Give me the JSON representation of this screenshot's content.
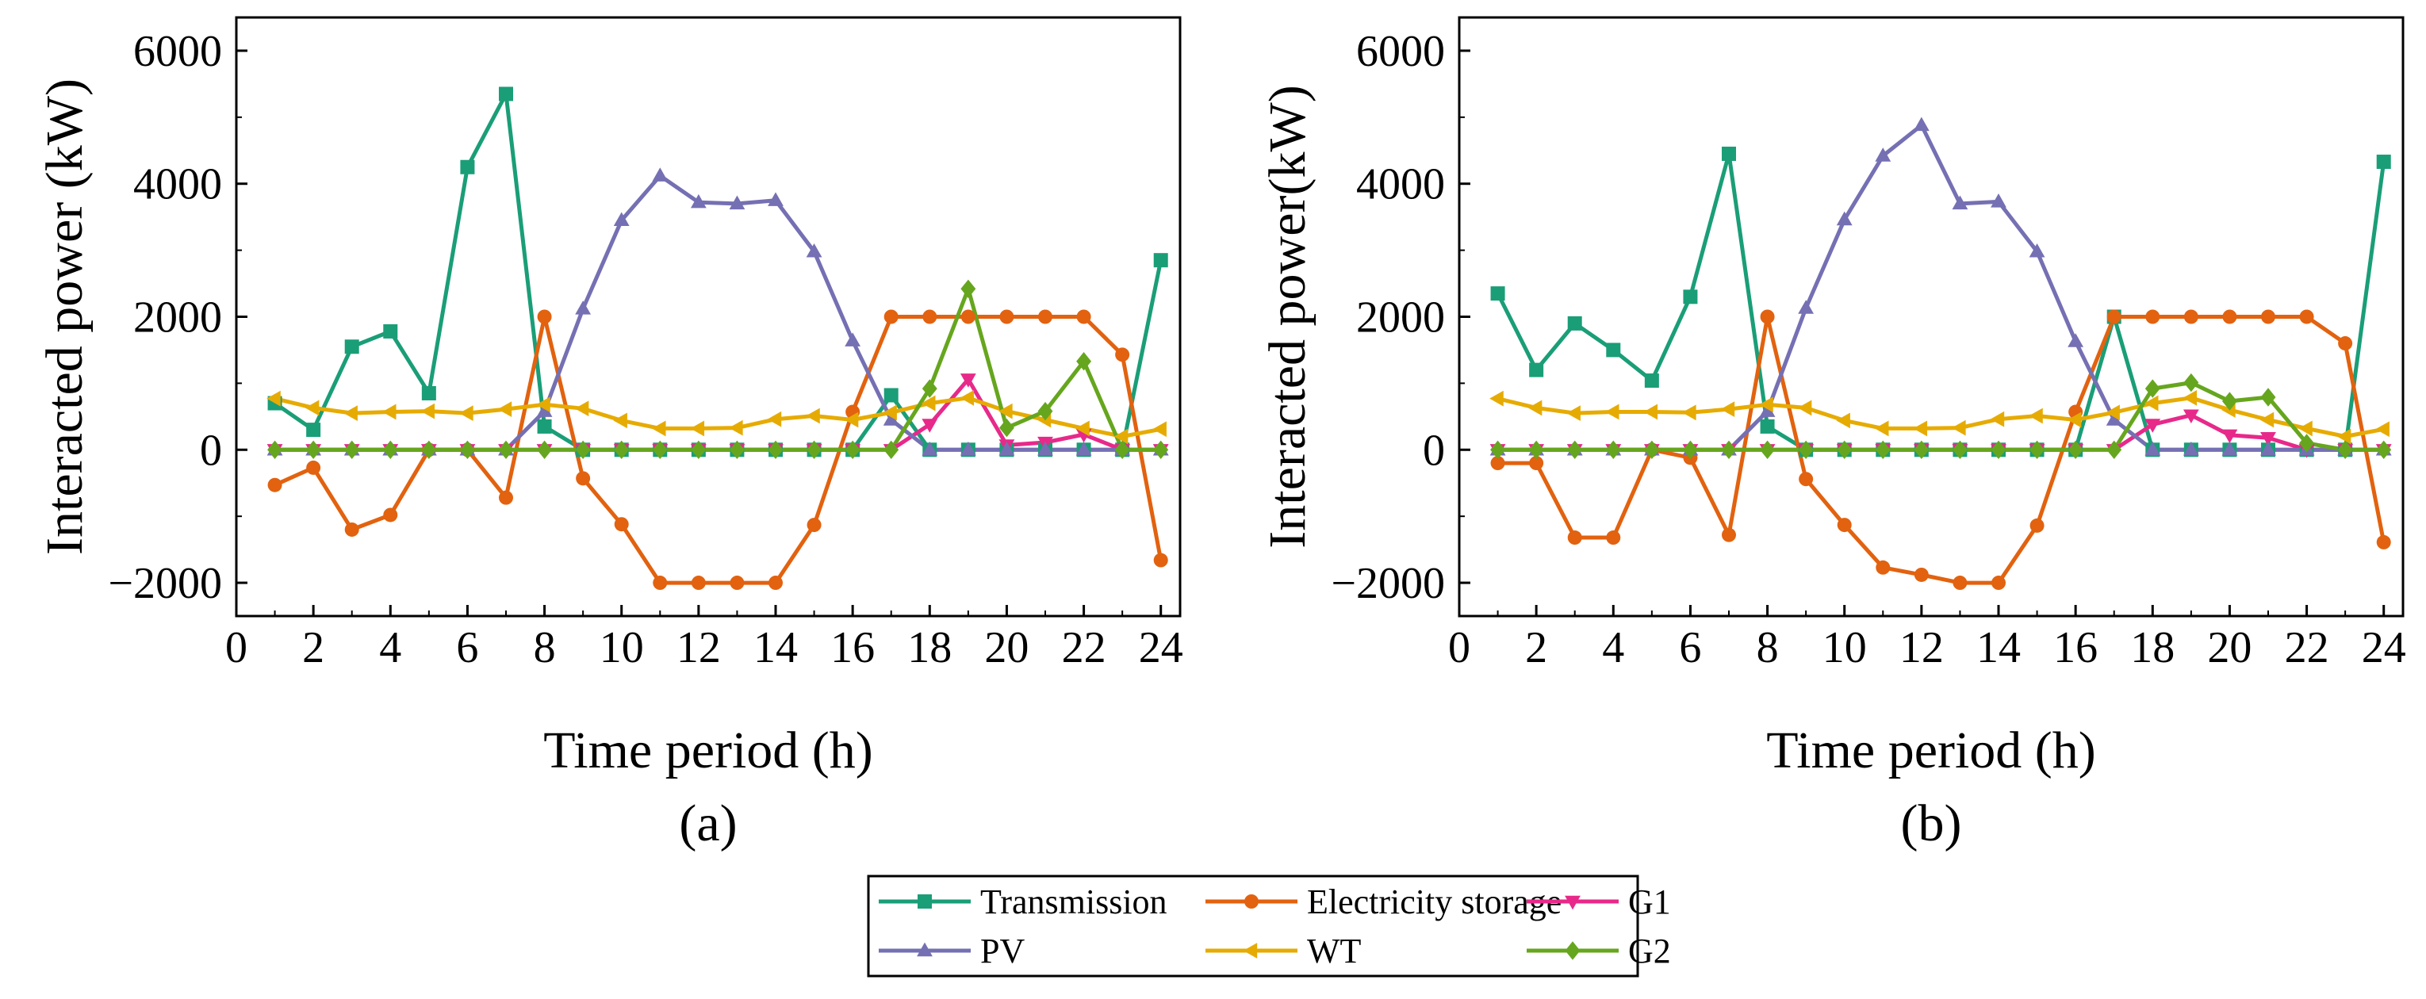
{
  "figure": {
    "panels": [
      "(a)",
      "(b)"
    ]
  },
  "legend": {
    "entries": [
      {
        "name": "Transmission",
        "color": "#1a9e77",
        "marker": "square"
      },
      {
        "name": "Electricity storage",
        "color": "#e2620f",
        "marker": "circle"
      },
      {
        "name": "G1",
        "color": "#e7298a",
        "marker": "triangle-down"
      },
      {
        "name": "PV",
        "color": "#7570b3",
        "marker": "triangle-up"
      },
      {
        "name": "WT",
        "color": "#e6ab02",
        "marker": "triangle-left"
      },
      {
        "name": "G2",
        "color": "#66a61e",
        "marker": "diamond"
      }
    ]
  },
  "chart_data": [
    {
      "type": "line",
      "panel_label": "(a)",
      "xlabel": "Time period (h)",
      "ylabel": "Interacted power (kW)",
      "xlim": [
        0,
        24.5
      ],
      "ylim": [
        -2500,
        6500
      ],
      "xticks": [
        0,
        2,
        4,
        6,
        8,
        10,
        12,
        14,
        16,
        18,
        20,
        22,
        24
      ],
      "yticks": [
        -2000,
        0,
        2000,
        4000,
        6000
      ],
      "x": [
        1,
        2,
        3,
        4,
        5,
        6,
        7,
        8,
        9,
        10,
        11,
        12,
        13,
        14,
        15,
        16,
        17,
        18,
        19,
        20,
        21,
        22,
        23,
        24
      ],
      "series": [
        {
          "name": "Transmission",
          "values": [
            700,
            300,
            1550,
            1780,
            850,
            4250,
            5350,
            350,
            0,
            0,
            0,
            0,
            0,
            0,
            0,
            0,
            820,
            0,
            0,
            0,
            0,
            0,
            0,
            2850
          ]
        },
        {
          "name": "Electricity storage",
          "values": [
            -530,
            -270,
            -1200,
            -980,
            0,
            0,
            -720,
            2000,
            -430,
            -1120,
            -2000,
            -2000,
            -2000,
            -2000,
            -1130,
            570,
            2000,
            2000,
            2000,
            2000,
            2000,
            2000,
            1430,
            -1660
          ]
        },
        {
          "name": "G1",
          "values": [
            0,
            0,
            0,
            0,
            0,
            0,
            0,
            0,
            0,
            0,
            0,
            0,
            0,
            0,
            0,
            0,
            0,
            380,
            1060,
            70,
            110,
            230,
            0,
            0
          ]
        },
        {
          "name": "PV",
          "values": [
            0,
            0,
            0,
            0,
            0,
            0,
            0,
            580,
            2120,
            3450,
            4120,
            3720,
            3700,
            3750,
            2980,
            1640,
            450,
            0,
            0,
            0,
            0,
            0,
            0,
            0
          ]
        },
        {
          "name": "WT",
          "values": [
            770,
            630,
            550,
            570,
            580,
            550,
            610,
            680,
            620,
            440,
            320,
            320,
            330,
            460,
            510,
            450,
            560,
            700,
            780,
            580,
            450,
            320,
            200,
            310
          ]
        },
        {
          "name": "G2",
          "values": [
            0,
            0,
            0,
            0,
            0,
            0,
            0,
            0,
            0,
            0,
            0,
            0,
            0,
            0,
            0,
            0,
            0,
            920,
            2420,
            330,
            580,
            1330,
            0,
            0
          ]
        }
      ]
    },
    {
      "type": "line",
      "panel_label": "(b)",
      "xlabel": "Time period (h)",
      "ylabel": "Interacted power(kW)",
      "xlim": [
        0,
        24.5
      ],
      "ylim": [
        -2500,
        6500
      ],
      "xticks": [
        0,
        2,
        4,
        6,
        8,
        10,
        12,
        14,
        16,
        18,
        20,
        22,
        24
      ],
      "yticks": [
        -2000,
        0,
        2000,
        4000,
        6000
      ],
      "x": [
        1,
        2,
        3,
        4,
        5,
        6,
        7,
        8,
        9,
        10,
        11,
        12,
        13,
        14,
        15,
        16,
        17,
        18,
        19,
        20,
        21,
        22,
        23,
        24
      ],
      "series": [
        {
          "name": "Transmission",
          "values": [
            2350,
            1200,
            1900,
            1500,
            1040,
            2300,
            4450,
            350,
            0,
            0,
            0,
            0,
            0,
            0,
            0,
            0,
            2000,
            0,
            0,
            0,
            0,
            0,
            0,
            4330
          ]
        },
        {
          "name": "Electricity storage",
          "values": [
            -200,
            -200,
            -1320,
            -1320,
            0,
            -120,
            -1280,
            2000,
            -440,
            -1130,
            -1770,
            -1880,
            -2000,
            -2000,
            -1140,
            570,
            2000,
            2000,
            2000,
            2000,
            2000,
            2000,
            1600,
            -1390
          ]
        },
        {
          "name": "G1",
          "values": [
            0,
            0,
            0,
            0,
            0,
            0,
            0,
            0,
            0,
            0,
            0,
            0,
            0,
            0,
            0,
            0,
            0,
            380,
            520,
            220,
            180,
            0,
            0,
            0
          ]
        },
        {
          "name": "PV",
          "values": [
            0,
            0,
            0,
            0,
            0,
            0,
            0,
            580,
            2130,
            3460,
            4420,
            4880,
            3700,
            3730,
            2980,
            1630,
            450,
            0,
            0,
            0,
            0,
            0,
            0,
            0
          ]
        },
        {
          "name": "WT",
          "values": [
            770,
            630,
            550,
            570,
            570,
            560,
            610,
            680,
            630,
            440,
            320,
            320,
            330,
            460,
            510,
            450,
            560,
            700,
            780,
            600,
            450,
            320,
            200,
            310
          ]
        },
        {
          "name": "G2",
          "values": [
            0,
            0,
            0,
            0,
            0,
            0,
            0,
            0,
            0,
            0,
            0,
            0,
            0,
            0,
            0,
            0,
            0,
            920,
            1010,
            730,
            790,
            100,
            0,
            0
          ]
        }
      ]
    }
  ]
}
